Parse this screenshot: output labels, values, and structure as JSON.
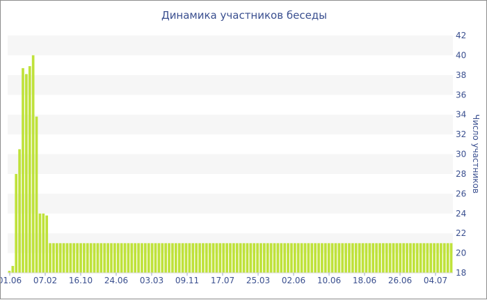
{
  "chart_data": {
    "type": "bar",
    "title": "Динамика участников беседы",
    "xlabel": "",
    "ylabel": "Число участников",
    "ylim": [
      18,
      42
    ],
    "yticks": [
      18,
      20,
      22,
      24,
      26,
      28,
      30,
      32,
      34,
      36,
      38,
      40,
      42
    ],
    "xtick_labels": [
      "01.06",
      "07.02",
      "16.10",
      "24.06",
      "03.03",
      "09.11",
      "17.07",
      "25.03",
      "02.06",
      "10.06",
      "18.06",
      "26.06",
      "04.07"
    ],
    "bar_color": "#bfe23a",
    "grid": "horizontal bands",
    "values": [
      18.2,
      18.7,
      28,
      30.5,
      38.7,
      38.1,
      38.9,
      40,
      33.8,
      24,
      24,
      23.8,
      21,
      21,
      21,
      21,
      21,
      21,
      21,
      21,
      21,
      21,
      21,
      21,
      21,
      21,
      21,
      21,
      21,
      21,
      21,
      21,
      21,
      21,
      21,
      21,
      21,
      21,
      21,
      21,
      21,
      21,
      21,
      21,
      21,
      21,
      21,
      21,
      21,
      21,
      21,
      21,
      21,
      21,
      21,
      21,
      21,
      21,
      21,
      21,
      21,
      21,
      21,
      21,
      21,
      21,
      21,
      21,
      21,
      21,
      21,
      21,
      21,
      21,
      21,
      21,
      21,
      21,
      21,
      21,
      21,
      21,
      21,
      21,
      21,
      21,
      21,
      21,
      21,
      21,
      21,
      21,
      21,
      21,
      21,
      21,
      21,
      21,
      21,
      21,
      21,
      21,
      21,
      21,
      21,
      21,
      21,
      21,
      21,
      21,
      21,
      21,
      21,
      21,
      21,
      21,
      21,
      21,
      21,
      21,
      21,
      21,
      21,
      21,
      21,
      21,
      21,
      21,
      21,
      21,
      21
    ]
  }
}
